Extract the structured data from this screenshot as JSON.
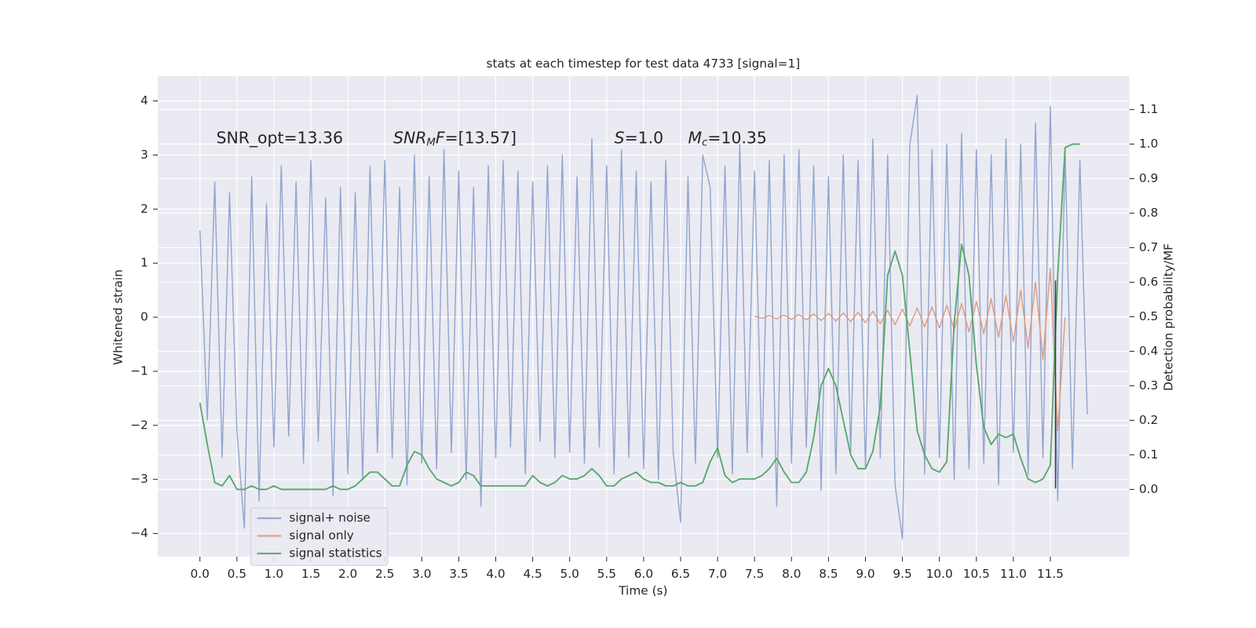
{
  "chart_data": {
    "type": "line",
    "title": "stats at each timestep for test data 4733 [signal=1]",
    "x_label": "Time (s)",
    "y_label": "Whitened strain",
    "y2_label": "Detection probability/MF",
    "xlim": [
      -0.57,
      12.57
    ],
    "ylim": [
      -4.43,
      4.46
    ],
    "y2lim": [
      -0.195,
      1.197
    ],
    "grid": true,
    "legend": "lower left",
    "xticks": [
      {
        "value": 0,
        "label": "0.0"
      },
      0.5,
      {
        "value": 1,
        "label": "1.0"
      },
      1.5,
      {
        "value": 2,
        "label": "2.0"
      },
      2.5,
      {
        "value": 3,
        "label": "3.0"
      },
      3.5,
      {
        "value": 4,
        "label": "4.0"
      },
      4.5,
      {
        "value": 5,
        "label": "5.0"
      },
      5.5,
      {
        "value": 6,
        "label": "6.0"
      },
      6.5,
      {
        "value": 7,
        "label": "7.0"
      },
      7.5,
      {
        "value": 8,
        "label": "8.0"
      },
      8.5,
      {
        "value": 9,
        "label": "9.0"
      },
      9.5,
      {
        "value": 10,
        "label": "10.0"
      },
      10.5,
      {
        "value": 11,
        "label": "11.0"
      },
      11.5
    ],
    "yticks": [
      {
        "value": -4,
        "label": "−4"
      },
      {
        "value": -3,
        "label": "−3"
      },
      {
        "value": -2,
        "label": "−2"
      },
      {
        "value": -1,
        "label": "−1"
      },
      0,
      1,
      2,
      3,
      4
    ],
    "y2ticks": [
      {
        "value": 0,
        "label": "0.0"
      },
      0.1,
      0.2,
      0.3,
      0.4,
      0.5,
      0.6,
      0.7,
      0.8,
      0.9,
      {
        "value": 1,
        "label": "1.0"
      },
      1.1
    ],
    "annotations": [
      {
        "parts": [
          {
            "text": "SNR_opt=13.36"
          }
        ]
      },
      {
        "parts": [
          {
            "text": "SNR",
            "italic": true
          },
          {
            "text": "M",
            "italic": true,
            "sub": true
          },
          {
            "text": "F",
            "italic": true
          },
          {
            "text": "=[13.57]"
          }
        ]
      },
      {
        "parts": [
          {
            "text": "S",
            "italic": true
          },
          {
            "text": "=1.0"
          }
        ]
      },
      {
        "parts": [
          {
            "text": "M",
            "italic": true
          },
          {
            "text": "c",
            "italic": true,
            "sub": true
          },
          {
            "text": "=10.35"
          }
        ]
      }
    ],
    "vline": {
      "x": 11.57,
      "ymin": -3.17,
      "ymax": 0.68,
      "color": "#3a3a3a"
    },
    "series": [
      {
        "name": "signal+ noise",
        "color": "#92a5cf",
        "x": [
          0,
          0.1,
          0.2,
          0.3,
          0.4,
          0.5,
          0.6,
          0.7,
          0.8,
          0.9,
          1,
          1.1,
          1.2,
          1.3,
          1.4,
          1.5,
          1.6,
          1.7,
          1.8,
          1.9,
          2,
          2.1,
          2.2,
          2.3,
          2.4,
          2.5,
          2.6,
          2.7,
          2.8,
          2.9,
          3,
          3.1,
          3.2,
          3.3,
          3.4,
          3.5,
          3.6,
          3.7,
          3.8,
          3.9,
          4,
          4.1,
          4.2,
          4.3,
          4.4,
          4.5,
          4.6,
          4.7,
          4.8,
          4.9,
          5,
          5.1,
          5.2,
          5.3,
          5.4,
          5.5,
          5.6,
          5.7,
          5.8,
          5.9,
          6,
          6.1,
          6.2,
          6.3,
          6.4,
          6.5,
          6.6,
          6.7,
          6.8,
          6.9,
          7,
          7.1,
          7.2,
          7.3,
          7.4,
          7.5,
          7.6,
          7.7,
          7.8,
          7.9,
          8,
          8.1,
          8.2,
          8.3,
          8.4,
          8.5,
          8.6,
          8.7,
          8.8,
          8.9,
          9,
          9.1,
          9.2,
          9.3,
          9.4,
          9.5,
          9.6,
          9.7,
          9.8,
          9.9,
          10,
          10.1,
          10.2,
          10.3,
          10.4,
          10.5,
          10.6,
          10.7,
          10.8,
          10.9,
          11,
          11.1,
          11.2,
          11.3,
          11.4,
          11.5,
          11.6,
          11.7,
          11.8,
          11.9,
          12
        ],
        "values": [
          1.6,
          -1.9,
          2.5,
          -2.6,
          2.3,
          -2.1,
          -3.9,
          2.6,
          -3.4,
          2.1,
          -2.4,
          2.8,
          -2.2,
          2.5,
          -2.7,
          2.9,
          -2.3,
          2.2,
          -3.3,
          2.4,
          -2.9,
          2.3,
          -3.0,
          2.8,
          -2.5,
          2.9,
          -2.6,
          2.4,
          -3.1,
          3.0,
          -2.7,
          2.6,
          -2.8,
          3.1,
          -2.5,
          2.7,
          -3.0,
          2.4,
          -3.5,
          2.8,
          -2.6,
          2.9,
          -2.4,
          2.7,
          -2.9,
          2.5,
          -2.3,
          2.8,
          -2.6,
          3.0,
          -2.5,
          2.6,
          -2.7,
          3.3,
          -2.4,
          2.8,
          -2.9,
          3.1,
          -2.6,
          2.7,
          -2.8,
          2.5,
          -3.0,
          2.9,
          -2.5,
          -3.8,
          2.6,
          -2.7,
          3.0,
          2.4,
          -2.6,
          2.8,
          -2.9,
          3.2,
          -2.5,
          2.7,
          -2.6,
          2.9,
          -3.5,
          3.0,
          -2.7,
          3.1,
          -2.4,
          2.8,
          -3.2,
          2.6,
          -2.9,
          3.0,
          -2.5,
          2.9,
          -2.8,
          3.3,
          -2.6,
          3.0,
          -3.1,
          -4.1,
          3.2,
          4.1,
          -2.9,
          3.1,
          -2.6,
          3.2,
          -3.0,
          3.4,
          -2.8,
          3.1,
          -2.7,
          3.0,
          -3.1,
          3.3,
          -2.5,
          3.2,
          -2.9,
          3.6,
          -2.6,
          3.9,
          -3.4,
          3.1,
          -2.8,
          2.9,
          -1.8
        ]
      },
      {
        "name": "signal only",
        "color": "#dd9a7e",
        "x": [
          7.5,
          7.6,
          7.7,
          7.8,
          7.9,
          8,
          8.1,
          8.2,
          8.3,
          8.4,
          8.5,
          8.6,
          8.7,
          8.8,
          8.9,
          9,
          9.1,
          9.2,
          9.3,
          9.4,
          9.5,
          9.6,
          9.7,
          9.8,
          9.9,
          10,
          10.1,
          10.2,
          10.3,
          10.4,
          10.5,
          10.6,
          10.7,
          10.8,
          10.9,
          11,
          11.1,
          11.2,
          11.3,
          11.4,
          11.5,
          11.6,
          11.7
        ],
        "values": [
          0.02,
          -0.02,
          0.03,
          -0.03,
          0.04,
          -0.04,
          0.05,
          -0.05,
          0.06,
          -0.06,
          0.07,
          -0.07,
          0.08,
          -0.08,
          0.09,
          -0.1,
          0.11,
          -0.12,
          0.13,
          -0.14,
          0.15,
          -0.16,
          0.17,
          -0.18,
          0.19,
          -0.2,
          0.22,
          -0.23,
          0.25,
          -0.27,
          0.29,
          -0.31,
          0.34,
          -0.37,
          0.4,
          -0.45,
          0.5,
          -0.57,
          0.65,
          -0.78,
          0.9,
          -2.1,
          0.0
        ]
      },
      {
        "name": "signal statistics",
        "color": "#55a868",
        "axis": "y2",
        "x": [
          0,
          0.1,
          0.2,
          0.3,
          0.4,
          0.5,
          0.6,
          0.7,
          0.8,
          0.9,
          1,
          1.1,
          1.2,
          1.3,
          1.4,
          1.5,
          1.6,
          1.7,
          1.8,
          1.9,
          2,
          2.1,
          2.2,
          2.3,
          2.4,
          2.5,
          2.6,
          2.7,
          2.8,
          2.9,
          3,
          3.1,
          3.2,
          3.3,
          3.4,
          3.5,
          3.6,
          3.7,
          3.8,
          3.9,
          4,
          4.1,
          4.2,
          4.3,
          4.4,
          4.5,
          4.6,
          4.7,
          4.8,
          4.9,
          5,
          5.1,
          5.2,
          5.3,
          5.4,
          5.5,
          5.6,
          5.7,
          5.8,
          5.9,
          6,
          6.1,
          6.2,
          6.3,
          6.4,
          6.5,
          6.6,
          6.7,
          6.8,
          6.9,
          7,
          7.1,
          7.2,
          7.3,
          7.4,
          7.5,
          7.6,
          7.7,
          7.8,
          7.9,
          8,
          8.1,
          8.2,
          8.3,
          8.4,
          8.5,
          8.6,
          8.7,
          8.8,
          8.9,
          9,
          9.1,
          9.2,
          9.3,
          9.4,
          9.5,
          9.6,
          9.7,
          9.8,
          9.9,
          10,
          10.1,
          10.2,
          10.3,
          10.4,
          10.5,
          10.6,
          10.7,
          10.8,
          10.9,
          11,
          11.1,
          11.2,
          11.3,
          11.4,
          11.5,
          11.6,
          11.7,
          11.8,
          11.9
        ],
        "values": [
          0.25,
          0.13,
          0.02,
          0.01,
          0.04,
          0.0,
          0.0,
          0.01,
          0.0,
          0.0,
          0.01,
          0.0,
          0.0,
          0.0,
          0.0,
          0.0,
          0.0,
          0.0,
          0.01,
          0.0,
          0.0,
          0.01,
          0.03,
          0.05,
          0.05,
          0.03,
          0.01,
          0.01,
          0.07,
          0.11,
          0.1,
          0.06,
          0.03,
          0.02,
          0.01,
          0.02,
          0.05,
          0.04,
          0.01,
          0.01,
          0.01,
          0.01,
          0.01,
          0.01,
          0.01,
          0.04,
          0.02,
          0.01,
          0.02,
          0.04,
          0.03,
          0.03,
          0.04,
          0.06,
          0.04,
          0.01,
          0.01,
          0.03,
          0.04,
          0.05,
          0.03,
          0.02,
          0.02,
          0.01,
          0.01,
          0.02,
          0.01,
          0.01,
          0.02,
          0.08,
          0.12,
          0.04,
          0.02,
          0.03,
          0.03,
          0.03,
          0.04,
          0.06,
          0.09,
          0.05,
          0.02,
          0.02,
          0.05,
          0.15,
          0.3,
          0.35,
          0.3,
          0.2,
          0.1,
          0.06,
          0.06,
          0.11,
          0.24,
          0.62,
          0.69,
          0.62,
          0.4,
          0.17,
          0.1,
          0.06,
          0.05,
          0.08,
          0.48,
          0.71,
          0.62,
          0.36,
          0.18,
          0.13,
          0.16,
          0.15,
          0.16,
          0.09,
          0.03,
          0.02,
          0.03,
          0.07,
          0.62,
          0.99,
          1.0,
          1.0
        ]
      }
    ]
  }
}
